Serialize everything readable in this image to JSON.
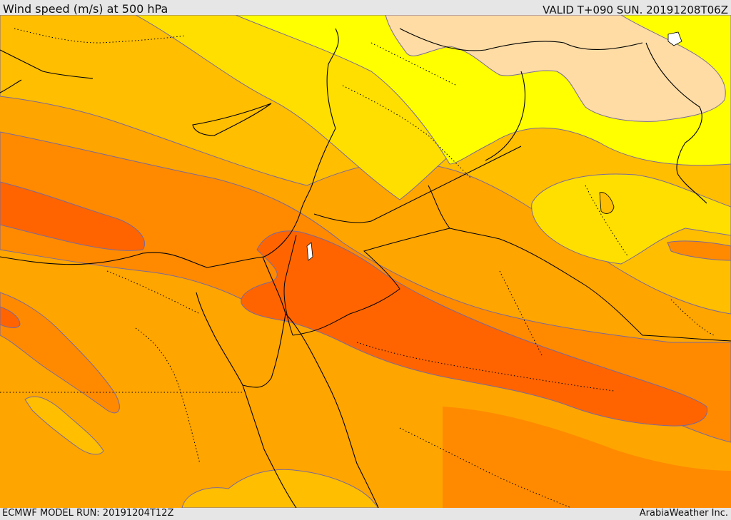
{
  "title": "Wind speed (m/s) at 500 hPa",
  "valid_time": "VALID T+090 SUN. 20191208T06Z",
  "model_run": "ECMWF MODEL RUN: 20191204T12Z",
  "credit": "ArabiaWeather Inc.",
  "colors": {
    "band_yellow": "#ffff00",
    "band_light_gold": "#ffdf00",
    "band_gold": "#ffbe00",
    "band_amber": "#ffa500",
    "band_orange": "#ff8a00",
    "band_deep_orange": "#ff6400",
    "band_peach": "#ffdca4",
    "contour": "#7a6a9a",
    "coastline": "#000000"
  }
}
